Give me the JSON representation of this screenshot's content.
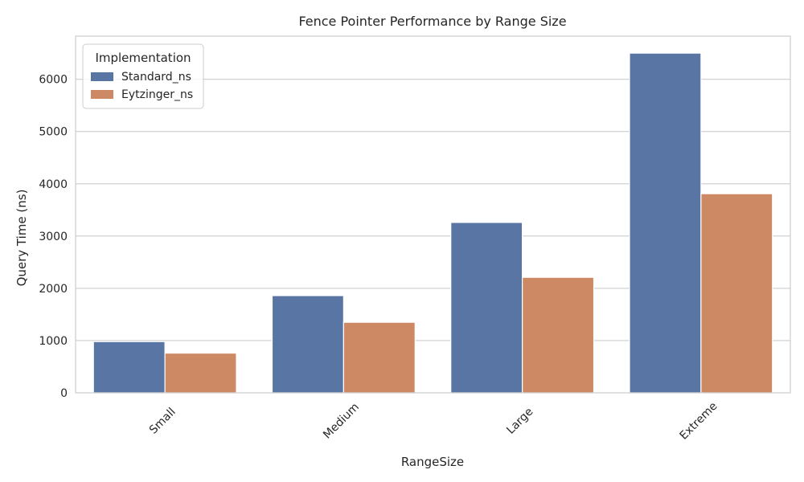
{
  "chart_data": {
    "type": "bar",
    "title": "Fence Pointer Performance by Range Size",
    "xlabel": "RangeSize",
    "ylabel": "Query Time (ns)",
    "categories": [
      "Small",
      "Medium",
      "Large",
      "Extreme"
    ],
    "series": [
      {
        "name": "Standard_ns",
        "values": [
          980,
          1860,
          3260,
          6500
        ],
        "color": "#5875a4"
      },
      {
        "name": "Eytzinger_ns",
        "values": [
          760,
          1350,
          2210,
          3810
        ],
        "color": "#cc8963"
      }
    ],
    "ylim": [
      0,
      6825
    ],
    "yticks": [
      0,
      1000,
      2000,
      3000,
      4000,
      5000,
      6000
    ],
    "grid": true,
    "legend": {
      "title": "Implementation",
      "placement": "top-left"
    }
  }
}
